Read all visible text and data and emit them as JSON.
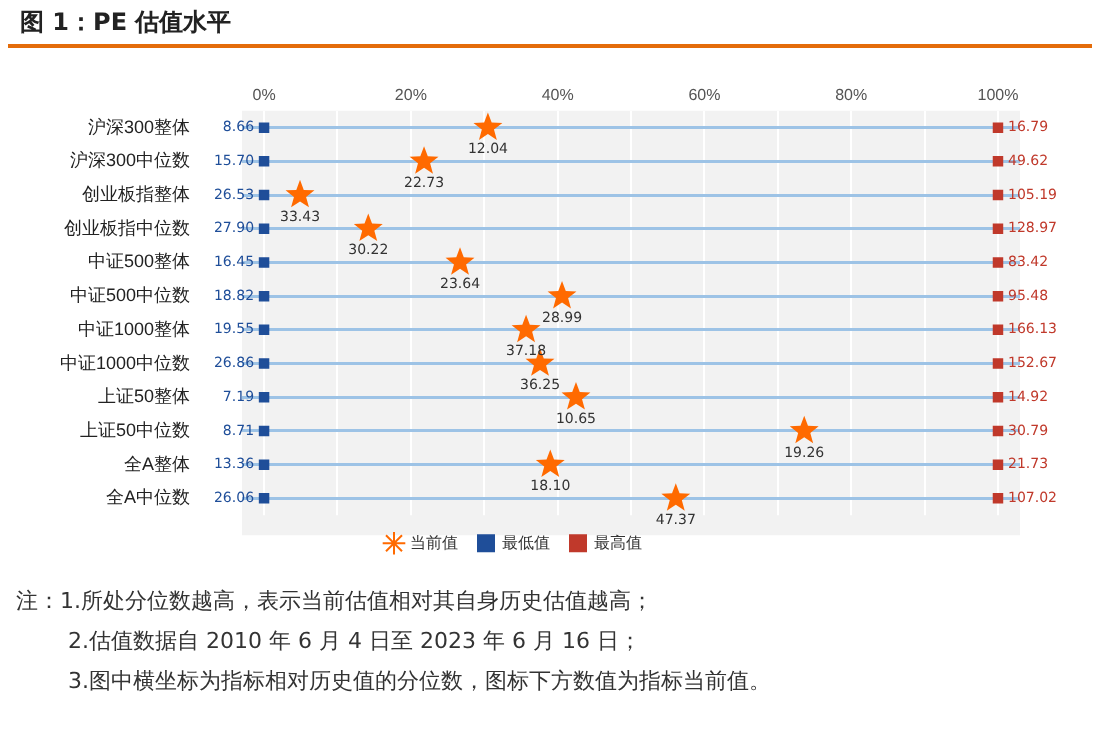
{
  "chart_data": {
    "type": "scatter",
    "orientation": "horizontal",
    "title": "图 1：PE 估值水平",
    "categories": [
      "沪深300整体",
      "沪深300中位数",
      "创业板指整体",
      "创业板指中位数",
      "中证500整体",
      "中证500中位数",
      "中证1000整体",
      "中证1000中位数",
      "上证50整体",
      "上证50中位数",
      "全A整体",
      "全A中位数"
    ],
    "xlim": [
      -3,
      103
    ],
    "xticks": [
      {
        "value": 0,
        "label": "0%"
      },
      {
        "value": 10,
        "label": null
      },
      {
        "value": 20,
        "label": "20%"
      },
      {
        "value": 30,
        "label": null
      },
      {
        "value": 40,
        "label": "40%"
      },
      {
        "value": 50,
        "label": null
      },
      {
        "value": 60,
        "label": "60%"
      },
      {
        "value": 70,
        "label": null
      },
      {
        "value": 80,
        "label": "80%"
      },
      {
        "value": 90,
        "label": null
      },
      {
        "value": 100,
        "label": "100%"
      }
    ],
    "grid": true,
    "legend": "bottom",
    "series": [
      {
        "name": "当前值",
        "color": "#ff6a00",
        "marker": "star",
        "values": [
          30.5,
          21.8,
          4.9,
          14.2,
          26.7,
          40.6,
          35.7,
          37.6,
          42.5,
          73.6,
          39,
          56.1
        ]
      },
      {
        "name": "最低值",
        "color": "#1f4e99",
        "marker": "square",
        "values": [
          0,
          0,
          0,
          0,
          0,
          0,
          0,
          0,
          0,
          0,
          0,
          0
        ]
      },
      {
        "name": "最高值",
        "color": "#c0392b",
        "marker": "square",
        "values": [
          100,
          100,
          100,
          100,
          100,
          100,
          100,
          100,
          100,
          100,
          100,
          100
        ]
      }
    ],
    "annotations": [
      {
        "text": "12.04",
        "x": 30.5,
        "y": "沪深300整体"
      },
      {
        "text": "22.73",
        "x": 21.8,
        "y": "沪深300中位数"
      },
      {
        "text": "33.43",
        "x": 4.9,
        "y": "创业板指整体"
      },
      {
        "text": "30.22",
        "x": 14.2,
        "y": "创业板指中位数"
      },
      {
        "text": "23.64",
        "x": 26.7,
        "y": "中证500整体"
      },
      {
        "text": "28.99",
        "x": 40.6,
        "y": "中证500中位数"
      },
      {
        "text": "37.18",
        "x": 35.7,
        "y": "中证1000整体"
      },
      {
        "text": "36.25",
        "x": 37.6,
        "y": "中证1000中位数"
      },
      {
        "text": "10.65",
        "x": 42.5,
        "y": "上证50整体"
      },
      {
        "text": "19.26",
        "x": 73.6,
        "y": "上证50中位数"
      },
      {
        "text": "18.10",
        "x": 39,
        "y": "全A整体"
      },
      {
        "text": "47.37",
        "x": 56.1,
        "y": "全A中位数"
      },
      {
        "text": "8.66",
        "x": 0,
        "y": "沪深300整体"
      },
      {
        "text": "15.70",
        "x": 0,
        "y": "沪深300中位数"
      },
      {
        "text": "26.53",
        "x": 0,
        "y": "创业板指整体"
      },
      {
        "text": "27.90",
        "x": 0,
        "y": "创业板指中位数"
      },
      {
        "text": "16.45",
        "x": 0,
        "y": "中证500整体"
      },
      {
        "text": "18.82",
        "x": 0,
        "y": "中证500中位数"
      },
      {
        "text": "19.55",
        "x": 0,
        "y": "中证1000整体"
      },
      {
        "text": "26.86",
        "x": 0,
        "y": "中证1000中位数"
      },
      {
        "text": "7.19",
        "x": 0,
        "y": "上证50整体"
      },
      {
        "text": "8.71",
        "x": 0,
        "y": "上证50中位数"
      },
      {
        "text": "13.36",
        "x": 0,
        "y": "全A整体"
      },
      {
        "text": "26.06",
        "x": 0,
        "y": "全A中位数"
      },
      {
        "text": "16.79",
        "x": 100,
        "y": "沪深300整体"
      },
      {
        "text": "49.62",
        "x": 100,
        "y": "沪深300中位数"
      },
      {
        "text": "105.19",
        "x": 100,
        "y": "创业板指整体"
      },
      {
        "text": "128.97",
        "x": 100,
        "y": "创业板指中位数"
      },
      {
        "text": "83.42",
        "x": 100,
        "y": "中证500整体"
      },
      {
        "text": "95.48",
        "x": 100,
        "y": "中证500中位数"
      },
      {
        "text": "166.13",
        "x": 100,
        "y": "中证1000整体"
      },
      {
        "text": "152.67",
        "x": 100,
        "y": "中证1000中位数"
      },
      {
        "text": "14.92",
        "x": 100,
        "y": "上证50整体"
      },
      {
        "text": "30.79",
        "x": 100,
        "y": "上证50中位数"
      },
      {
        "text": "21.73",
        "x": 100,
        "y": "全A整体"
      },
      {
        "text": "107.02",
        "x": 100,
        "y": "全A中位数"
      },
      "注：1.所处分位数越高，表示当前估值相对其自身历史估值越高；",
      "2.估值数据自 2010 年 6 月 4 日至 2023 年 6 月 16 日；",
      "3.图中横坐标为指标相对历史值的分位数，图标下方数值为指标当前值。"
    ]
  }
}
